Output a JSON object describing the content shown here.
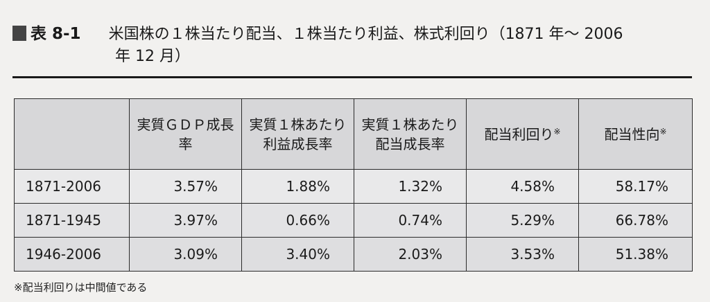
{
  "title": {
    "number": "表 8-1",
    "text": "米国株の１株当たり配当、１株当たり利益、株式利回り（1871 年〜 2006",
    "text_line2": "年 12 月）"
  },
  "table": {
    "headers": [
      {
        "label": "",
        "note": ""
      },
      {
        "label": "実質ＧＤＰ成長率",
        "note": ""
      },
      {
        "label": "実質１株あたり利益成長率",
        "note": ""
      },
      {
        "label": "実質１株あたり配当成長率",
        "note": ""
      },
      {
        "label": "配当利回り",
        "note": "※"
      },
      {
        "label": "配当性向",
        "note": "※"
      }
    ],
    "rows": [
      [
        "1871-2006",
        "3.57%",
        "1.88%",
        "1.32%",
        "4.58%",
        "58.17%"
      ],
      [
        "1871-1945",
        "3.97%",
        "0.66%",
        "0.74%",
        "5.29%",
        "66.78%"
      ],
      [
        "1946-2006",
        "3.09%",
        "3.40%",
        "2.03%",
        "3.53%",
        "51.38%"
      ]
    ]
  },
  "footnote": "※配当利回りは中間値である"
}
